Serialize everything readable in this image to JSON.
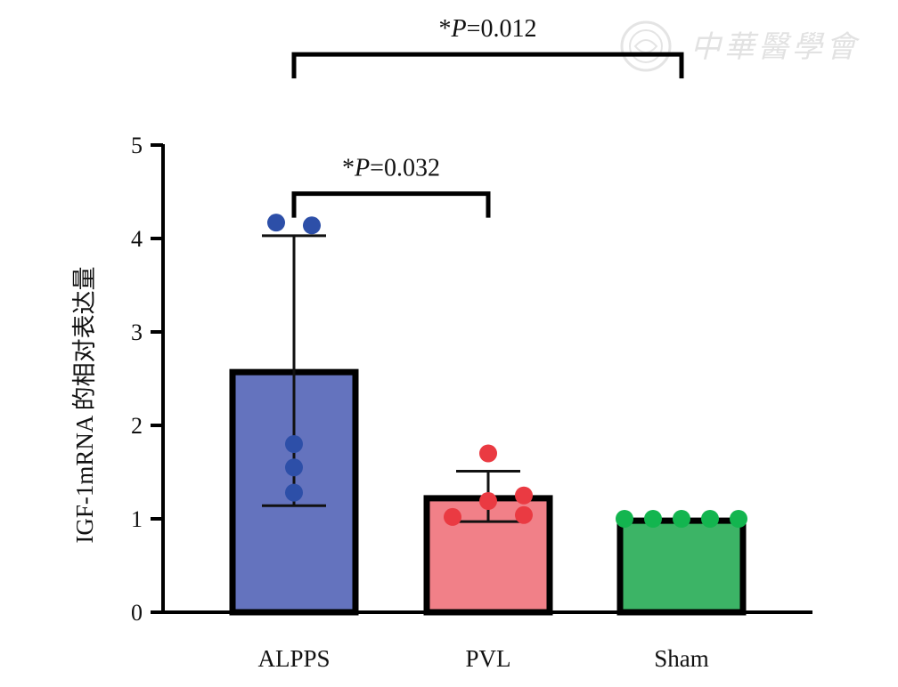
{
  "watermark": {
    "text": "中華醫學會",
    "seal_icon": "seal-icon"
  },
  "chart_data": {
    "type": "bar",
    "xlabel": "",
    "ylabel": "IGF-1mRNA 的相对表达量",
    "ylim": [
      0,
      5
    ],
    "yticks": [
      "0",
      "1",
      "2",
      "3",
      "4",
      "5"
    ],
    "categories": [
      "ALPPS",
      "PVL",
      "Sham"
    ],
    "values": [
      2.57,
      1.22,
      0.98
    ],
    "error": [
      [
        1.14,
        4.03
      ],
      [
        0.97,
        1.51
      ],
      [
        0.98,
        0.98
      ]
    ],
    "colors": [
      "#6473be",
      "#f18088",
      "#3cb466"
    ],
    "point_colors": [
      "#2d4fa8",
      "#ea3a42",
      "#13b54f"
    ],
    "points": [
      [
        4.17,
        4.14,
        1.8,
        1.55,
        1.28
      ],
      [
        1.7,
        1.25,
        1.19,
        1.04,
        1.02
      ],
      [
        1.0,
        1.0,
        1.0,
        1.0,
        1.0
      ]
    ],
    "significance": [
      {
        "from": 0,
        "to": 1,
        "star": "*",
        "p_symbol": "P",
        "p_text": "=0.032"
      },
      {
        "from": 0,
        "to": 2,
        "star": "*",
        "p_symbol": "P",
        "p_text": "=0.012"
      }
    ],
    "grid": false,
    "legend": "none"
  }
}
